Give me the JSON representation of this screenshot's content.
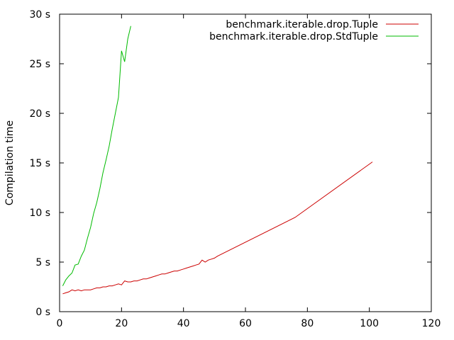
{
  "chart_data": {
    "type": "line",
    "title": "",
    "xlabel": "",
    "ylabel": "Compilation time",
    "xlim": [
      0,
      120
    ],
    "ylim": [
      0,
      30
    ],
    "xticks": [
      {
        "value": 0,
        "label": "0"
      },
      {
        "value": 20,
        "label": "20"
      },
      {
        "value": 40,
        "label": "40"
      },
      {
        "value": 60,
        "label": "60"
      },
      {
        "value": 80,
        "label": "80"
      },
      {
        "value": 100,
        "label": "100"
      },
      {
        "value": 120,
        "label": "120"
      }
    ],
    "yticks": [
      {
        "value": 0,
        "label": "0 s"
      },
      {
        "value": 5,
        "label": "5 s"
      },
      {
        "value": 10,
        "label": "10 s"
      },
      {
        "value": 15,
        "label": "15 s"
      },
      {
        "value": 20,
        "label": "20 s"
      },
      {
        "value": 25,
        "label": "25 s"
      },
      {
        "value": 30,
        "label": "30 s"
      }
    ],
    "grid": false,
    "legend_position": "top-right",
    "series": [
      {
        "name": "benchmark.iterable.drop.Tuple",
        "color": "#cc0000",
        "x": [
          1,
          2,
          3,
          4,
          5,
          6,
          7,
          8,
          9,
          10,
          11,
          12,
          13,
          14,
          15,
          16,
          17,
          18,
          19,
          20,
          21,
          22,
          23,
          24,
          25,
          26,
          27,
          28,
          29,
          30,
          31,
          32,
          33,
          34,
          35,
          36,
          37,
          38,
          39,
          40,
          41,
          42,
          43,
          44,
          45,
          46,
          47,
          48,
          49,
          50,
          51,
          76,
          101
        ],
        "y": [
          1.8,
          1.9,
          2.0,
          2.2,
          2.1,
          2.2,
          2.1,
          2.2,
          2.2,
          2.2,
          2.3,
          2.4,
          2.4,
          2.5,
          2.5,
          2.6,
          2.6,
          2.7,
          2.8,
          2.7,
          3.1,
          3.0,
          3.0,
          3.1,
          3.1,
          3.2,
          3.3,
          3.3,
          3.4,
          3.5,
          3.6,
          3.7,
          3.8,
          3.8,
          3.9,
          4.0,
          4.1,
          4.1,
          4.2,
          4.3,
          4.4,
          4.5,
          4.6,
          4.7,
          4.8,
          5.2,
          5.0,
          5.2,
          5.3,
          5.4,
          5.6,
          9.5,
          15.1
        ]
      },
      {
        "name": "benchmark.iterable.drop.StdTuple",
        "color": "#00bb00",
        "x": [
          1,
          2,
          3,
          4,
          5,
          6,
          7,
          8,
          9,
          10,
          11,
          12,
          13,
          14,
          15,
          16,
          17,
          18,
          19,
          20,
          21,
          22,
          23
        ],
        "y": [
          2.6,
          3.2,
          3.6,
          3.9,
          4.7,
          4.8,
          5.6,
          6.2,
          7.4,
          8.5,
          9.9,
          11.0,
          12.4,
          14.0,
          15.3,
          16.7,
          18.4,
          20.0,
          21.6,
          26.3,
          25.2,
          27.5,
          28.8
        ]
      }
    ]
  }
}
